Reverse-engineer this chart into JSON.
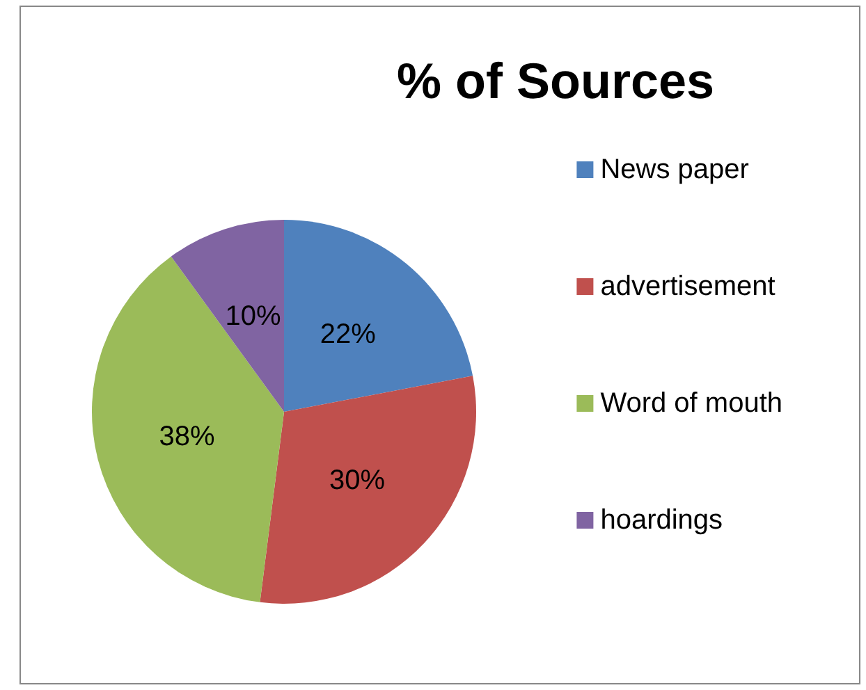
{
  "chart_data": {
    "type": "pie",
    "title": "% of Sources",
    "categories": [
      "News paper",
      "advertisement",
      "Word of mouth",
      "hoardings"
    ],
    "values": [
      22,
      30,
      38,
      10
    ],
    "value_labels": [
      "22%",
      "30%",
      "38%",
      "10%"
    ],
    "colors": [
      "#4f81bd",
      "#c0504d",
      "#9bbb59",
      "#8064a2"
    ],
    "legend": "right"
  }
}
